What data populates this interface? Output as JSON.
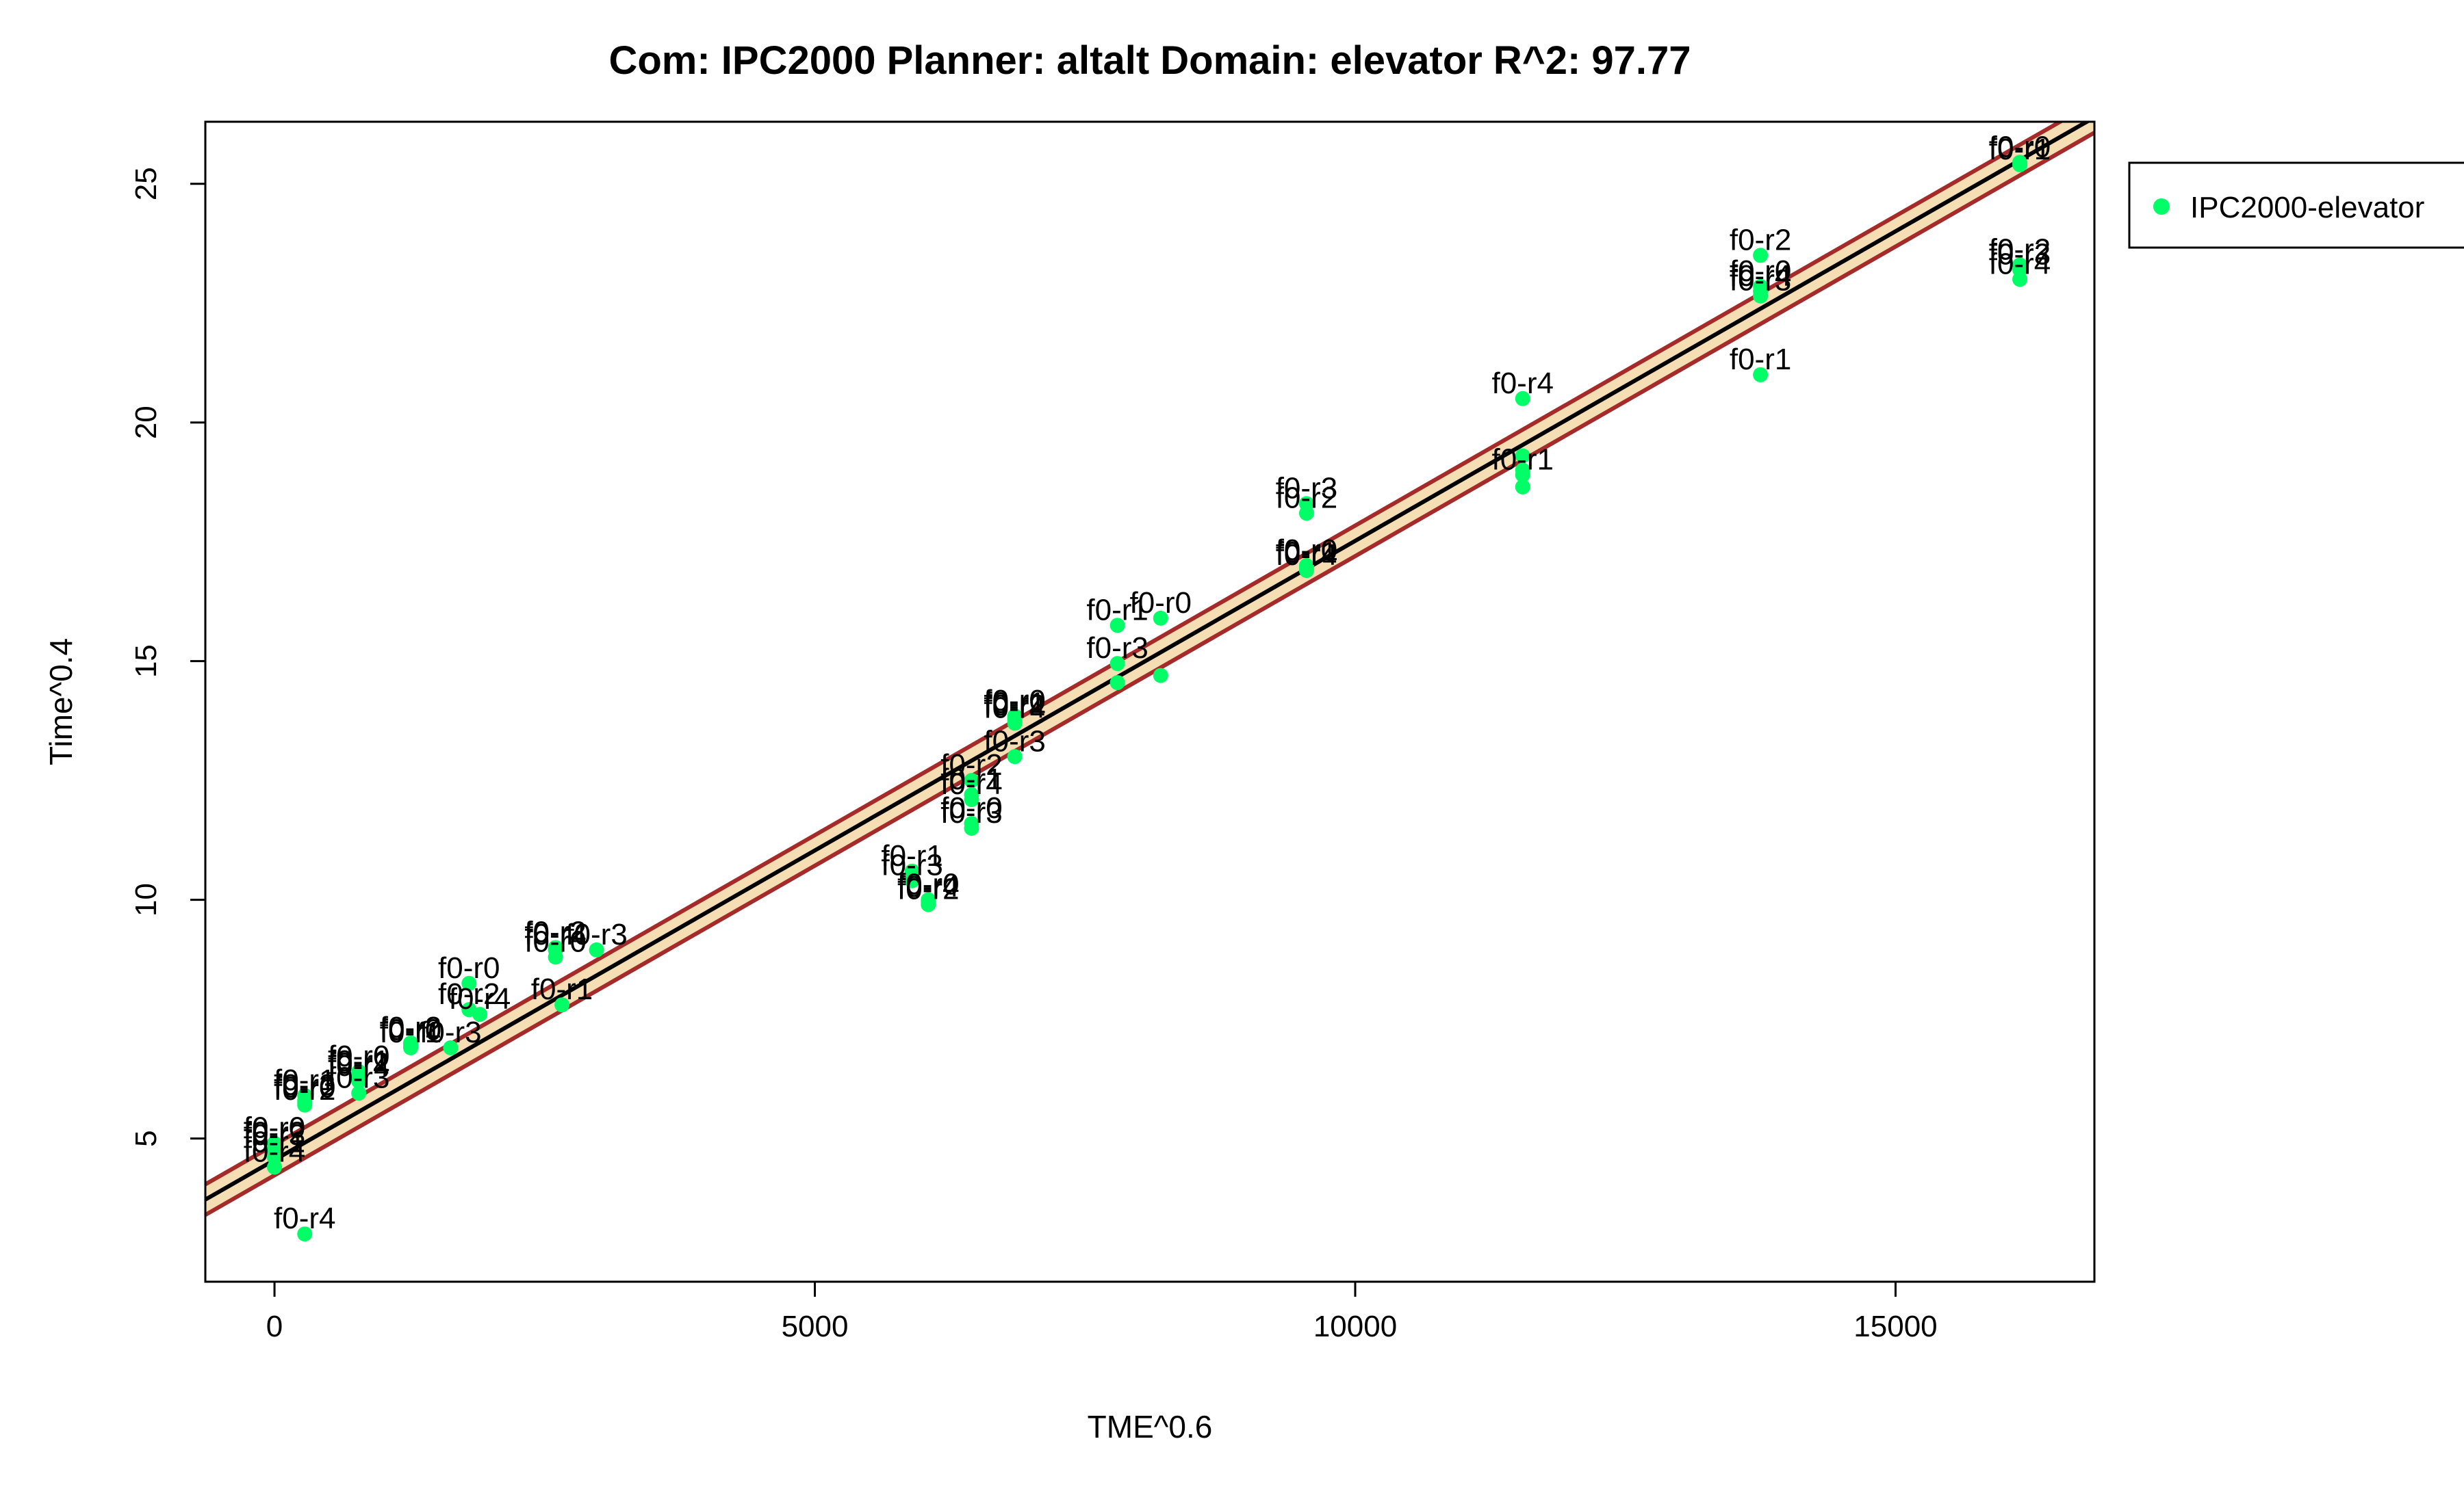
{
  "chart_data": {
    "type": "scatter",
    "title": "Com: IPC2000 Planner: altalt Domain: elevator R^2: 97.77",
    "xlabel": "TME^0.6",
    "ylabel": "Time^0.4",
    "xlim": [
      -640,
      16840
    ],
    "ylim": [
      2.0,
      26.3
    ],
    "xticks": [
      0,
      5000,
      10000,
      15000
    ],
    "yticks": [
      5,
      10,
      15,
      20,
      25
    ],
    "grid": false,
    "legend": {
      "position": "right",
      "entries": [
        {
          "label": "IPC2000-elevator",
          "color": "#00ff66"
        }
      ]
    },
    "colors": {
      "points": "#00ff66",
      "fit_line": "#000000",
      "band_fill": "#f5deb3",
      "band_line": "#a52a2a"
    },
    "regression": {
      "slope": 0.001297,
      "intercept": 4.55,
      "band_halfwidth": 0.32
    },
    "series": [
      {
        "name": "IPC2000-elevator",
        "points": [
          {
            "x": 0,
            "y": 4.9,
            "label": "f0-r0"
          },
          {
            "x": 0,
            "y": 4.8,
            "label": "f0-r2"
          },
          {
            "x": 0,
            "y": 4.75,
            "label": "f0-r3"
          },
          {
            "x": 0,
            "y": 4.6,
            "label": "f0-r1"
          },
          {
            "x": 0,
            "y": 4.4,
            "label": "f0-r4"
          },
          {
            "x": 280,
            "y": 3.0,
            "label": "f0-r4"
          },
          {
            "x": 280,
            "y": 5.9,
            "label": "f0-r1"
          },
          {
            "x": 280,
            "y": 5.8,
            "label": "f0-r3"
          },
          {
            "x": 280,
            "y": 5.75,
            "label": "f0-r0"
          },
          {
            "x": 280,
            "y": 5.7,
            "label": "f0-r2"
          },
          {
            "x": 780,
            "y": 6.4,
            "label": "f0-r0"
          },
          {
            "x": 780,
            "y": 6.3,
            "label": "f0-r1"
          },
          {
            "x": 780,
            "y": 6.25,
            "label": "f0-r2"
          },
          {
            "x": 780,
            "y": 6.2,
            "label": "f0-r4"
          },
          {
            "x": 780,
            "y": 5.95,
            "label": "f0-r3"
          },
          {
            "x": 1260,
            "y": 7.0,
            "label": "f0-r2"
          },
          {
            "x": 1260,
            "y": 6.95,
            "label": "f0-r0"
          },
          {
            "x": 1260,
            "y": 6.9,
            "label": "f0-r1"
          },
          {
            "x": 1630,
            "y": 6.9,
            "label": "f0-r3"
          },
          {
            "x": 1800,
            "y": 8.25,
            "label": "f0-r0"
          },
          {
            "x": 1800,
            "y": 7.7,
            "label": "f0-r2"
          },
          {
            "x": 1900,
            "y": 7.6,
            "label": "f0-r4"
          },
          {
            "x": 2600,
            "y": 9.0,
            "label": "f0-r2"
          },
          {
            "x": 2600,
            "y": 8.95,
            "label": "f0-r4"
          },
          {
            "x": 2600,
            "y": 8.8,
            "label": "f0-r0"
          },
          {
            "x": 2660,
            "y": 7.8,
            "label": "f0-r1"
          },
          {
            "x": 2980,
            "y": 8.95,
            "label": "f0-r3"
          },
          {
            "x": 5900,
            "y": 10.6,
            "label": "f0-r1"
          },
          {
            "x": 5900,
            "y": 10.4,
            "label": "f0-r3"
          },
          {
            "x": 6050,
            "y": 10.0,
            "label": "f0-r0"
          },
          {
            "x": 6050,
            "y": 9.95,
            "label": "f0-r4"
          },
          {
            "x": 6050,
            "y": 9.9,
            "label": "f0-r2"
          },
          {
            "x": 6450,
            "y": 12.5,
            "label": "f0-r2"
          },
          {
            "x": 6450,
            "y": 12.2,
            "label": "f0-r1"
          },
          {
            "x": 6450,
            "y": 12.1,
            "label": "f0-r4"
          },
          {
            "x": 6450,
            "y": 11.6,
            "label": "f0-r0"
          },
          {
            "x": 6450,
            "y": 11.5,
            "label": "f0-r3"
          },
          {
            "x": 6850,
            "y": 13.85,
            "label": "f0-r0"
          },
          {
            "x": 6850,
            "y": 13.8,
            "label": "f0-r1"
          },
          {
            "x": 6850,
            "y": 13.75,
            "label": "f0-r2"
          },
          {
            "x": 6850,
            "y": 13.7,
            "label": "f0-r4"
          },
          {
            "x": 6850,
            "y": 13.0,
            "label": "f0-r3"
          },
          {
            "x": 7800,
            "y": 15.75,
            "label": "f0-r1"
          },
          {
            "x": 7800,
            "y": 14.95,
            "label": "f0-r3"
          },
          {
            "x": 7800,
            "y": 14.55,
            "label": ""
          },
          {
            "x": 8200,
            "y": 15.9,
            "label": "f0-r0"
          },
          {
            "x": 8200,
            "y": 14.7,
            "label": ""
          },
          {
            "x": 9550,
            "y": 18.3,
            "label": "f0-r3"
          },
          {
            "x": 9550,
            "y": 18.1,
            "label": "f0-r2"
          },
          {
            "x": 9550,
            "y": 17.0,
            "label": "f0-r0"
          },
          {
            "x": 9550,
            "y": 16.95,
            "label": "f0-r1"
          },
          {
            "x": 9550,
            "y": 16.9,
            "label": "f0-r4"
          },
          {
            "x": 11550,
            "y": 20.5,
            "label": "f0-r4"
          },
          {
            "x": 11550,
            "y": 19.3,
            "label": ""
          },
          {
            "x": 11550,
            "y": 19.0,
            "label": ""
          },
          {
            "x": 11550,
            "y": 18.9,
            "label": "f0-r1"
          },
          {
            "x": 11550,
            "y": 18.65,
            "label": ""
          },
          {
            "x": 13750,
            "y": 23.5,
            "label": "f0-r2"
          },
          {
            "x": 13750,
            "y": 22.85,
            "label": "f0-r0"
          },
          {
            "x": 13750,
            "y": 22.75,
            "label": "f0-r4"
          },
          {
            "x": 13750,
            "y": 22.65,
            "label": "f0-r3"
          },
          {
            "x": 13750,
            "y": 21.0,
            "label": "f0-r1"
          },
          {
            "x": 16150,
            "y": 25.45,
            "label": "f0-r0"
          },
          {
            "x": 16150,
            "y": 25.4,
            "label": "f0-r1"
          },
          {
            "x": 16150,
            "y": 23.3,
            "label": "f0-r2"
          },
          {
            "x": 16150,
            "y": 23.2,
            "label": "f0-r3"
          },
          {
            "x": 16150,
            "y": 23.0,
            "label": "f0-r4"
          }
        ]
      }
    ]
  }
}
